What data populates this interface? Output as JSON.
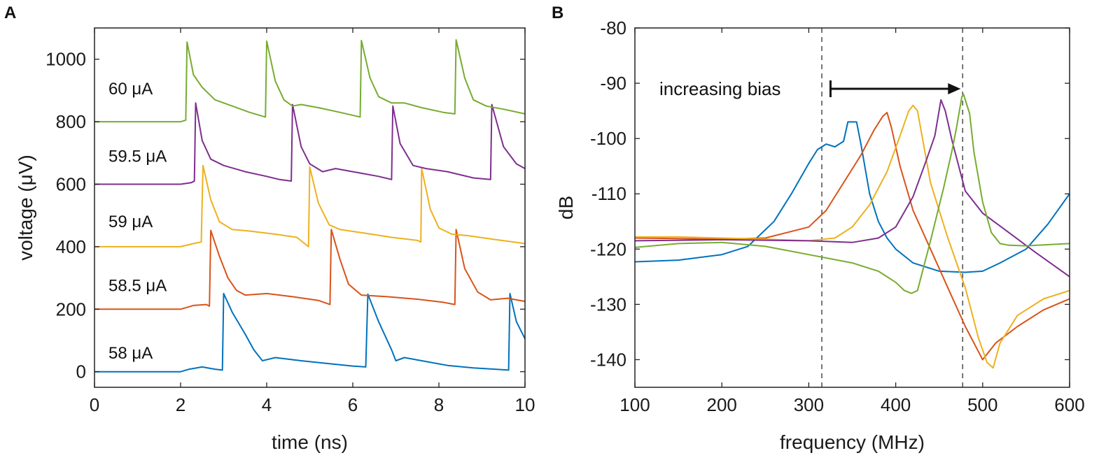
{
  "chart_data": [
    {
      "panel": "A",
      "type": "line",
      "xlabel": "time (ns)",
      "ylabel": "voltage (μV)",
      "xlim": [
        0,
        10
      ],
      "ylim": [
        -50,
        1100
      ],
      "xticks": [
        0,
        2,
        4,
        6,
        8,
        10
      ],
      "yticks": [
        0,
        200,
        400,
        600,
        800,
        1000
      ],
      "series": [
        {
          "name": "58 μA",
          "color": "#0072BD",
          "x": [
            0,
            2.0,
            2.2,
            2.5,
            2.8,
            2.97,
            3.0,
            3.2,
            3.5,
            3.7,
            3.9,
            4.2,
            4.8,
            5.5,
            6.0,
            6.3,
            6.35,
            6.6,
            6.9,
            7.0,
            7.2,
            7.6,
            8.2,
            8.8,
            9.3,
            9.62,
            9.65,
            9.8,
            10.0
          ],
          "y": [
            0,
            0,
            8,
            15,
            8,
            5,
            250,
            190,
            120,
            70,
            35,
            45,
            35,
            25,
            18,
            15,
            248,
            160,
            70,
            35,
            45,
            35,
            20,
            12,
            8,
            5,
            250,
            160,
            105
          ]
        },
        {
          "name": "58.5 μA",
          "color": "#D95319",
          "x": [
            0,
            2.0,
            2.3,
            2.6,
            2.67,
            2.7,
            2.9,
            3.1,
            3.3,
            3.5,
            4.0,
            4.6,
            5.2,
            5.47,
            5.5,
            5.7,
            5.9,
            6.2,
            6.8,
            7.5,
            8.1,
            8.37,
            8.4,
            8.6,
            8.9,
            9.2,
            9.6,
            10.0
          ],
          "y": [
            200,
            200,
            212,
            215,
            210,
            452,
            370,
            300,
            260,
            245,
            250,
            240,
            228,
            215,
            455,
            360,
            280,
            245,
            240,
            232,
            222,
            215,
            455,
            330,
            255,
            230,
            235,
            225
          ]
        },
        {
          "name": "59 μA",
          "color": "#EDB120",
          "x": [
            0,
            2.0,
            2.3,
            2.48,
            2.52,
            2.7,
            2.9,
            3.2,
            3.6,
            4.2,
            4.7,
            4.97,
            5.0,
            5.2,
            5.45,
            5.7,
            6.2,
            6.9,
            7.5,
            7.58,
            7.6,
            7.8,
            8.0,
            8.3,
            8.7,
            9.2,
            10.0
          ],
          "y": [
            400,
            400,
            410,
            415,
            660,
            550,
            480,
            455,
            450,
            440,
            430,
            400,
            655,
            540,
            470,
            455,
            445,
            430,
            420,
            415,
            650,
            520,
            460,
            440,
            435,
            425,
            410
          ]
        },
        {
          "name": "59.5 μA",
          "color": "#7E2F8E",
          "x": [
            0,
            2.0,
            2.25,
            2.32,
            2.35,
            2.5,
            2.7,
            3.0,
            3.5,
            4.0,
            4.3,
            4.57,
            4.6,
            4.8,
            5.0,
            5.3,
            5.6,
            6.0,
            6.6,
            6.9,
            6.93,
            7.1,
            7.4,
            7.7,
            8.2,
            8.8,
            9.2,
            9.23,
            9.5,
            9.8,
            10.0
          ],
          "y": [
            600,
            600,
            605,
            610,
            860,
            740,
            680,
            660,
            640,
            625,
            615,
            610,
            855,
            720,
            665,
            640,
            650,
            640,
            625,
            615,
            850,
            730,
            660,
            650,
            640,
            620,
            615,
            855,
            720,
            665,
            650
          ]
        },
        {
          "name": "60 μA",
          "color": "#77AC30",
          "x": [
            0,
            2.0,
            2.12,
            2.15,
            2.3,
            2.5,
            2.8,
            3.2,
            3.6,
            3.97,
            4.0,
            4.2,
            4.4,
            4.6,
            4.8,
            5.2,
            5.7,
            6.17,
            6.2,
            6.4,
            6.6,
            6.9,
            7.2,
            7.6,
            8.1,
            8.37,
            8.4,
            8.6,
            8.8,
            9.1,
            9.5,
            10.0
          ],
          "y": [
            800,
            800,
            805,
            1055,
            950,
            910,
            870,
            850,
            830,
            815,
            1058,
            930,
            870,
            850,
            855,
            845,
            830,
            815,
            1060,
            940,
            880,
            860,
            860,
            845,
            830,
            825,
            1062,
            940,
            870,
            850,
            840,
            825
          ]
        }
      ]
    },
    {
      "panel": "B",
      "type": "line",
      "xlabel": "frequency (MHz)",
      "ylabel": "dB",
      "xlim": [
        100,
        600
      ],
      "ylim": [
        -145,
        -80
      ],
      "xticks": [
        100,
        200,
        300,
        400,
        500,
        600
      ],
      "yticks": [
        -80,
        -90,
        -100,
        -110,
        -120,
        -130,
        -140
      ],
      "vlines": [
        315,
        477
      ],
      "annotation": {
        "text": "increasing bias",
        "arrow_from": 325,
        "arrow_to": 473,
        "arrow_y": -91
      },
      "series": [
        {
          "name": "blue",
          "color": "#0072BD",
          "x": [
            100,
            150,
            200,
            230,
            260,
            280,
            300,
            310,
            320,
            330,
            340,
            345,
            350,
            355,
            360,
            370,
            380,
            390,
            400,
            420,
            450,
            480,
            500,
            520,
            550,
            575,
            600
          ],
          "y": [
            -122.3,
            -122,
            -121,
            -119.5,
            -115,
            -110,
            -104.5,
            -102,
            -101,
            -101.5,
            -100.5,
            -97,
            -97,
            -97,
            -101,
            -110,
            -115,
            -118,
            -120,
            -122.5,
            -124,
            -124.2,
            -124,
            -122.5,
            -120,
            -115.5,
            -110
          ]
        },
        {
          "name": "red",
          "color": "#D95319",
          "x": [
            100,
            200,
            250,
            300,
            320,
            340,
            360,
            375,
            385,
            390,
            395,
            405,
            420,
            440,
            460,
            480,
            500,
            515,
            540,
            570,
            600
          ],
          "y": [
            -118,
            -118.2,
            -118,
            -116,
            -113,
            -108,
            -103,
            -98.5,
            -96,
            -95.3,
            -98,
            -105,
            -113,
            -120,
            -127,
            -134,
            -140,
            -137,
            -134,
            -131,
            -129
          ]
        },
        {
          "name": "yellow",
          "color": "#EDB120",
          "x": [
            100,
            150,
            200,
            250,
            300,
            330,
            350,
            370,
            390,
            405,
            415,
            420,
            425,
            440,
            460,
            480,
            495,
            505,
            512,
            520,
            540,
            570,
            600
          ],
          "y": [
            -117.8,
            -117.8,
            -118,
            -118.2,
            -118.5,
            -118,
            -116,
            -112,
            -106,
            -99.5,
            -95,
            -94,
            -95,
            -108,
            -118,
            -127,
            -136,
            -140.5,
            -141.5,
            -137,
            -132,
            -129,
            -127.5
          ]
        },
        {
          "name": "purple",
          "color": "#7E2F8E",
          "x": [
            100,
            200,
            300,
            350,
            380,
            400,
            420,
            435,
            445,
            452,
            457,
            465,
            480,
            500,
            530,
            560,
            600
          ],
          "y": [
            -118.5,
            -118.3,
            -118.5,
            -118.8,
            -118,
            -116,
            -110.5,
            -104,
            -99.5,
            -93,
            -95,
            -100.5,
            -109.5,
            -113.5,
            -117,
            -120.5,
            -125
          ]
        },
        {
          "name": "green",
          "color": "#77AC30",
          "x": [
            100,
            150,
            200,
            250,
            300,
            350,
            380,
            400,
            410,
            418,
            425,
            440,
            455,
            465,
            470,
            476,
            478,
            485,
            490,
            500,
            510,
            520,
            530,
            550,
            600
          ],
          "y": [
            -119.7,
            -119,
            -118.8,
            -119.5,
            -121,
            -122.5,
            -124,
            -126,
            -127.5,
            -128,
            -127.5,
            -118.5,
            -109,
            -102,
            -98,
            -92.5,
            -92,
            -95.5,
            -102.5,
            -111.5,
            -117,
            -119,
            -119.3,
            -119.4,
            -119
          ]
        }
      ]
    }
  ],
  "panelA": {
    "label": "A",
    "series_labels": [
      {
        "text": "60 μA",
        "y": 905
      },
      {
        "text": "59.5 μA",
        "y": 690
      },
      {
        "text": "59 μA",
        "y": 480
      },
      {
        "text": "58.5 μA",
        "y": 275
      },
      {
        "text": "58 μA",
        "y": 60
      }
    ]
  },
  "panelB": {
    "label": "B"
  }
}
